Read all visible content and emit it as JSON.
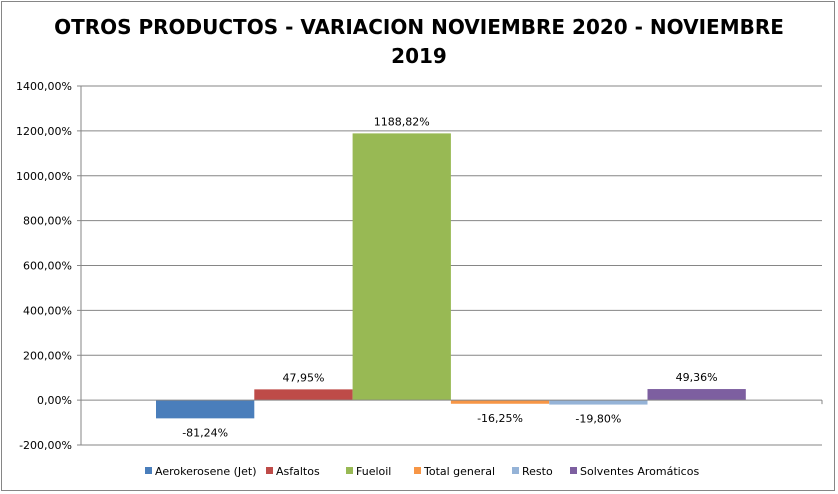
{
  "chart_data": {
    "type": "bar",
    "title_lines": [
      "OTROS PRODUCTOS - VARIACION NOVIEMBRE 2020 - NOVIEMBRE",
      "2019"
    ],
    "xlabel": "",
    "ylabel": "",
    "ylim": [
      -200,
      1400
    ],
    "ytick_step": 200,
    "yticks": [
      "-200,00%",
      "0,00%",
      "200,00%",
      "400,00%",
      "600,00%",
      "800,00%",
      "1000,00%",
      "1200,00%",
      "1400,00%"
    ],
    "grid": true,
    "legend_position": "bottom",
    "series": [
      {
        "name": "Aerokerosene (Jet)",
        "value": -81.24,
        "label": "-81,24%",
        "color": "#4A7EBB"
      },
      {
        "name": "Asfaltos",
        "value": 47.95,
        "label": "47,95%",
        "color": "#BE4B48"
      },
      {
        "name": "Fueloil",
        "value": 1188.82,
        "label": "1188,82%",
        "color": "#98B954"
      },
      {
        "name": "Total general",
        "value": -16.25,
        "label": "-16,25%",
        "color": "#F79646"
      },
      {
        "name": "Resto",
        "value": -19.8,
        "label": "-19,80%",
        "color": "#95B3D7"
      },
      {
        "name": "Solventes Aromáticos",
        "value": 49.36,
        "label": "49,36%",
        "color": "#7D5FA0"
      }
    ]
  }
}
